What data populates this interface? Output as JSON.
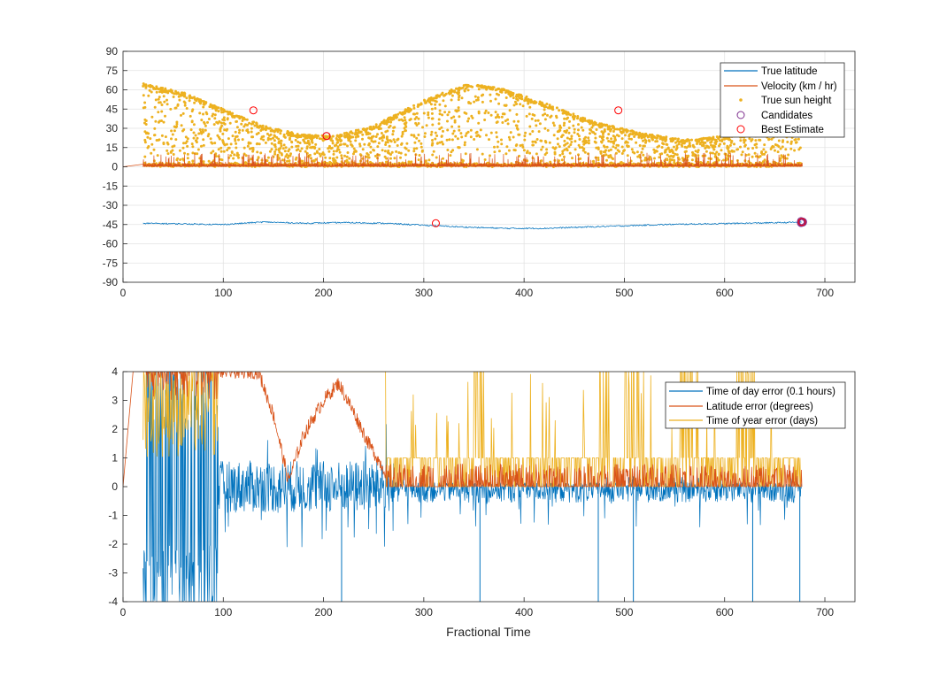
{
  "chart_data": [
    {
      "type": "scatter",
      "xlim": [
        0,
        730
      ],
      "ylim": [
        -90,
        90
      ],
      "xticks": [
        "0",
        "100",
        "200",
        "300",
        "400",
        "500",
        "600",
        "700"
      ],
      "xtick_values": [
        0,
        100,
        200,
        300,
        400,
        500,
        600,
        700
      ],
      "yticks": [
        "-90",
        "-75",
        "-60",
        "-45",
        "-30",
        "-15",
        "0",
        "15",
        "30",
        "45",
        "60",
        "75",
        "90"
      ],
      "ytick_values": [
        -90,
        -75,
        -60,
        -45,
        -30,
        -15,
        0,
        15,
        30,
        45,
        60,
        75,
        90
      ],
      "grid": true,
      "legend_position": "top-right",
      "legend": [
        "True latitude",
        "Velocity (km / hr)",
        "True sun height",
        "Candidates",
        "Best Estimate"
      ],
      "colors": {
        "latitude": "#0072BD",
        "velocity": "#D95319",
        "sun": "#EDB120",
        "candidates": "#7E2F8E",
        "best": "#FF0000"
      },
      "series": [
        {
          "name": "True latitude",
          "kind": "line",
          "x": [
            20,
            60,
            100,
            140,
            180,
            220,
            260,
            300,
            340,
            380,
            420,
            460,
            500,
            540,
            580,
            620,
            660,
            677
          ],
          "y": [
            -44,
            -44.5,
            -45,
            -43,
            -44,
            -43.5,
            -44,
            -45.5,
            -47,
            -48,
            -48,
            -47,
            -46,
            -45,
            -44.5,
            -44,
            -43.5,
            -43
          ]
        },
        {
          "name": "Velocity (km / hr)",
          "kind": "spiky",
          "x_range": [
            20,
            677
          ],
          "baseline": 0,
          "max": 11,
          "lead_in": [
            [
              0,
              0
            ],
            [
              20,
              2
            ]
          ]
        },
        {
          "name": "True sun height",
          "kind": "scatter-band",
          "x_range": [
            20,
            677
          ],
          "lower": 0,
          "upper_envelope": [
            [
              20,
              65
            ],
            [
              60,
              58
            ],
            [
              100,
              45
            ],
            [
              140,
              32
            ],
            [
              180,
              25
            ],
            [
              210,
              24
            ],
            [
              250,
              32
            ],
            [
              300,
              52
            ],
            [
              340,
              64
            ],
            [
              370,
              63
            ],
            [
              420,
              50
            ],
            [
              470,
              35
            ],
            [
              520,
              26
            ],
            [
              560,
              21
            ],
            [
              600,
              24
            ],
            [
              640,
              35
            ],
            [
              677,
              42
            ]
          ]
        },
        {
          "name": "Candidates",
          "kind": "markers",
          "x": [
            203,
            677
          ],
          "y": [
            24,
            -43
          ]
        },
        {
          "name": "Best Estimate",
          "kind": "markers",
          "x": [
            130,
            203,
            312,
            494,
            677
          ],
          "y": [
            44,
            24,
            -44,
            44,
            -43
          ]
        }
      ]
    },
    {
      "type": "line",
      "xlabel": "Fractional Time",
      "xlim": [
        0,
        730
      ],
      "ylim": [
        -4,
        4
      ],
      "xticks": [
        "0",
        "100",
        "200",
        "300",
        "400",
        "500",
        "600",
        "700"
      ],
      "xtick_values": [
        0,
        100,
        200,
        300,
        400,
        500,
        600,
        700
      ],
      "yticks": [
        "-4",
        "-3",
        "-2",
        "-1",
        "0",
        "1",
        "2",
        "3",
        "4"
      ],
      "ytick_values": [
        -4,
        -3,
        -2,
        -1,
        0,
        1,
        2,
        3,
        4
      ],
      "grid": false,
      "legend_position": "top-right",
      "legend": [
        "Time of day error (0.1 hours)",
        "Latitude error (degrees)",
        "Time of year error (days)"
      ],
      "colors": {
        "tod": "#0072BD",
        "lat": "#D95319",
        "toy": "#EDB120"
      },
      "series": [
        {
          "name": "Time of day error (0.1 hours)",
          "kind": "noise",
          "x_range": [
            20,
            677
          ],
          "center": 0,
          "amplitude_early": 4,
          "amplitude_late": 0.8,
          "transition_x": 95,
          "deep_spikes_x": [
            218,
            356,
            474,
            509,
            628,
            675
          ]
        },
        {
          "name": "Latitude error (degrees)",
          "kind": "trend",
          "x": [
            0,
            5,
            10,
            20,
            95,
            135,
            150,
            165,
            180,
            200,
            215,
            230,
            245,
            262,
            300,
            400,
            500,
            600,
            677
          ],
          "y": [
            0,
            3,
            4,
            4,
            4,
            4,
            2.5,
            0.2,
            1.8,
            3,
            3.6,
            2.6,
            1.5,
            0.5,
            0.3,
            0.3,
            0.4,
            0.4,
            0.3
          ]
        },
        {
          "name": "Time of year error (days)",
          "kind": "steps",
          "x_range": [
            20,
            677
          ],
          "levels": [
            0,
            1
          ],
          "early_high_until": 262,
          "bursts": [
            [
              240,
              262,
              4
            ],
            [
              350,
              360,
              4
            ],
            [
              475,
              485,
              4
            ],
            [
              500,
              520,
              4
            ],
            [
              555,
              575,
              4
            ],
            [
              610,
              630,
              4
            ]
          ]
        }
      ]
    }
  ]
}
